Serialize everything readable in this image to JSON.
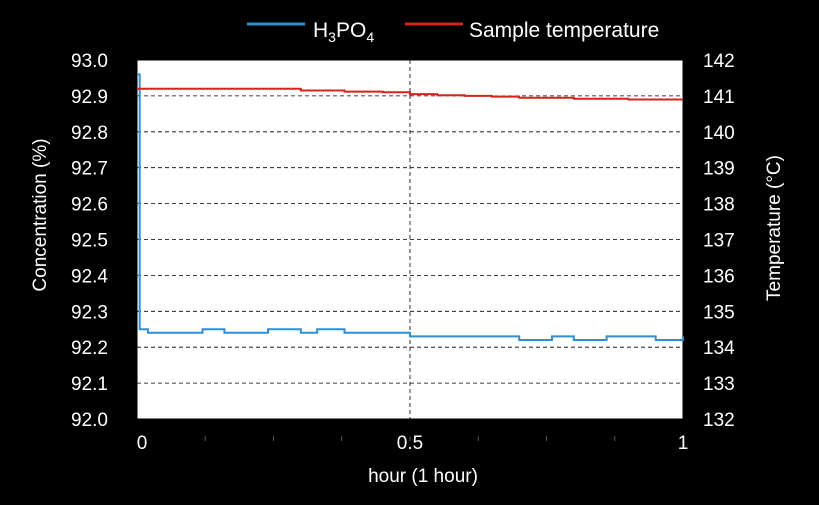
{
  "chart_data": {
    "type": "line",
    "legend": {
      "placement": "top",
      "items": [
        {
          "label_base": "H",
          "label_sub1": "3",
          "label_mid": "PO",
          "label_sub2": "4",
          "color": "#2f8fd0"
        },
        {
          "label": "Sample temperature",
          "color": "#d3241d"
        }
      ]
    },
    "xlabel": "hour (1 hour)",
    "xlim": [
      0,
      1
    ],
    "x_ticks": [
      "0",
      "0.5",
      "1"
    ],
    "x_tick_values": [
      0,
      0.5,
      1
    ],
    "y_left": {
      "label": "Concentration (%)",
      "lim": [
        92.0,
        93.0
      ],
      "ticks": [
        "93.0",
        "92.9",
        "92.8",
        "92.7",
        "92.6",
        "92.5",
        "92.4",
        "92.3",
        "92.2",
        "92.1",
        "92.0"
      ]
    },
    "y_right": {
      "label": "Temperature (°C)",
      "lim": [
        132,
        142
      ],
      "ticks": [
        "142",
        "141",
        "140",
        "139",
        "138",
        "137",
        "136",
        "135",
        "134",
        "133",
        "132"
      ]
    },
    "grid": {
      "horizontal": "dashed",
      "vertical_at": [
        0.5
      ]
    },
    "series": [
      {
        "name": "H3PO4",
        "axis": "left",
        "color": "#2f8fd0",
        "x": [
          0,
          0.005,
          0.02,
          0.12,
          0.16,
          0.24,
          0.3,
          0.33,
          0.38,
          0.44,
          0.5,
          0.58,
          0.62,
          0.66,
          0.7,
          0.76,
          0.8,
          0.86,
          0.9,
          0.95,
          1.0
        ],
        "y": [
          92.96,
          92.25,
          92.24,
          92.25,
          92.24,
          92.25,
          92.24,
          92.25,
          92.24,
          92.24,
          92.23,
          92.23,
          92.23,
          92.23,
          92.22,
          92.23,
          92.22,
          92.23,
          92.23,
          92.22,
          92.23
        ]
      },
      {
        "name": "Sample temperature",
        "axis": "right",
        "color": "#d3241d",
        "x": [
          0,
          0.05,
          0.1,
          0.2,
          0.3,
          0.38,
          0.45,
          0.5,
          0.55,
          0.6,
          0.65,
          0.7,
          0.75,
          0.8,
          0.85,
          0.9,
          0.95,
          1.0
        ],
        "y": [
          141.2,
          141.2,
          141.2,
          141.2,
          141.15,
          141.12,
          141.1,
          141.05,
          141.02,
          141.0,
          140.98,
          140.95,
          140.95,
          140.92,
          140.92,
          140.9,
          140.9,
          140.9
        ]
      }
    ]
  }
}
